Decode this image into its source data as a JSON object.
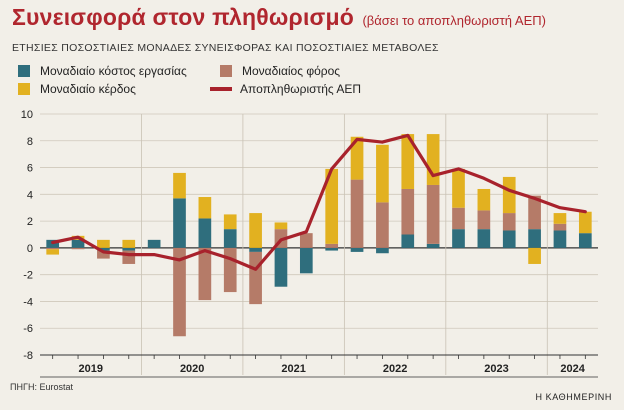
{
  "header": {
    "title": "Συνεισφορά στον πληθωρισμό",
    "title_note": "(βάσει το αποπληθωριστή ΑΕΠ)",
    "subtitle": "ΕΤΗΣΙΕΣ ΠΟΣΟΣΤΙΑΙΕΣ ΜΟΝΑΔΕΣ ΣΥΝΕΙΣΦΟΡΑΣ ΚΑΙ ΠΟΣΟΣΤΙΑΙΕΣ ΜΕΤΑΒΟΛΕΣ"
  },
  "legend": [
    {
      "label": "Μοναδιαίο κόστος εργασίας",
      "color": "#2f6e7d",
      "kind": "bar"
    },
    {
      "label": "Μοναδιαίος φόρος",
      "color": "#b57b68",
      "kind": "bar"
    },
    {
      "label": "Μοναδιαίο κέρδος",
      "color": "#e2b120",
      "kind": "bar"
    },
    {
      "label": "Αποπληθωριστής ΑΕΠ",
      "color": "#a8222c",
      "kind": "line"
    }
  ],
  "footer": {
    "source": "ΠΗΓΗ: Eurostat",
    "brand": "Η ΚΑΘΗΜΕΡΙΝΗ"
  },
  "chart_data": {
    "type": "bar",
    "stacked": true,
    "ylim": [
      -8,
      10
    ],
    "yticks": [
      -8,
      -6,
      -4,
      -2,
      0,
      2,
      4,
      6,
      8,
      10
    ],
    "year_labels": [
      "2019",
      "2020",
      "2021",
      "2022",
      "2023",
      "2024"
    ],
    "quarters_per_year": [
      4,
      4,
      4,
      4,
      4,
      2
    ],
    "series": [
      {
        "name": "Μοναδιαίο κόστος εργασίας",
        "color": "#2f6e7d",
        "values": [
          0.6,
          0.6,
          -0.2,
          -0.2,
          0.6,
          3.7,
          2.2,
          1.4,
          -0.3,
          -2.9,
          -1.9,
          -0.2,
          -0.3,
          -0.4,
          1.0,
          0.3,
          1.4,
          1.4,
          1.3,
          1.4,
          1.3,
          1.1
        ]
      },
      {
        "name": "Μοναδιαίος φόρος",
        "color": "#b57b68",
        "values": [
          -0.1,
          -0.1,
          -0.6,
          -1.0,
          0.0,
          -6.6,
          -3.9,
          -3.3,
          -3.9,
          1.4,
          1.1,
          0.3,
          5.1,
          3.4,
          3.4,
          4.4,
          1.6,
          1.4,
          1.3,
          2.5,
          0.5,
          0.0
        ]
      },
      {
        "name": "Μοναδιαίο κέρδος",
        "color": "#e2b120",
        "values": [
          -0.4,
          0.3,
          0.6,
          0.6,
          0.0,
          1.9,
          1.6,
          1.1,
          2.6,
          0.5,
          0.0,
          5.6,
          3.2,
          4.3,
          4.1,
          3.8,
          2.9,
          1.6,
          2.7,
          -1.2,
          0.8,
          1.6
        ]
      },
      {
        "name": "Αποπληθωριστής ΑΕΠ",
        "type": "line",
        "color": "#a8222c",
        "values": [
          0.4,
          0.8,
          -0.3,
          -0.5,
          -0.5,
          -0.9,
          -0.2,
          -0.8,
          -1.6,
          0.6,
          1.2,
          5.9,
          8.1,
          7.9,
          8.4,
          5.4,
          5.9,
          5.2,
          4.3,
          3.7,
          3.0,
          2.7
        ]
      }
    ]
  }
}
